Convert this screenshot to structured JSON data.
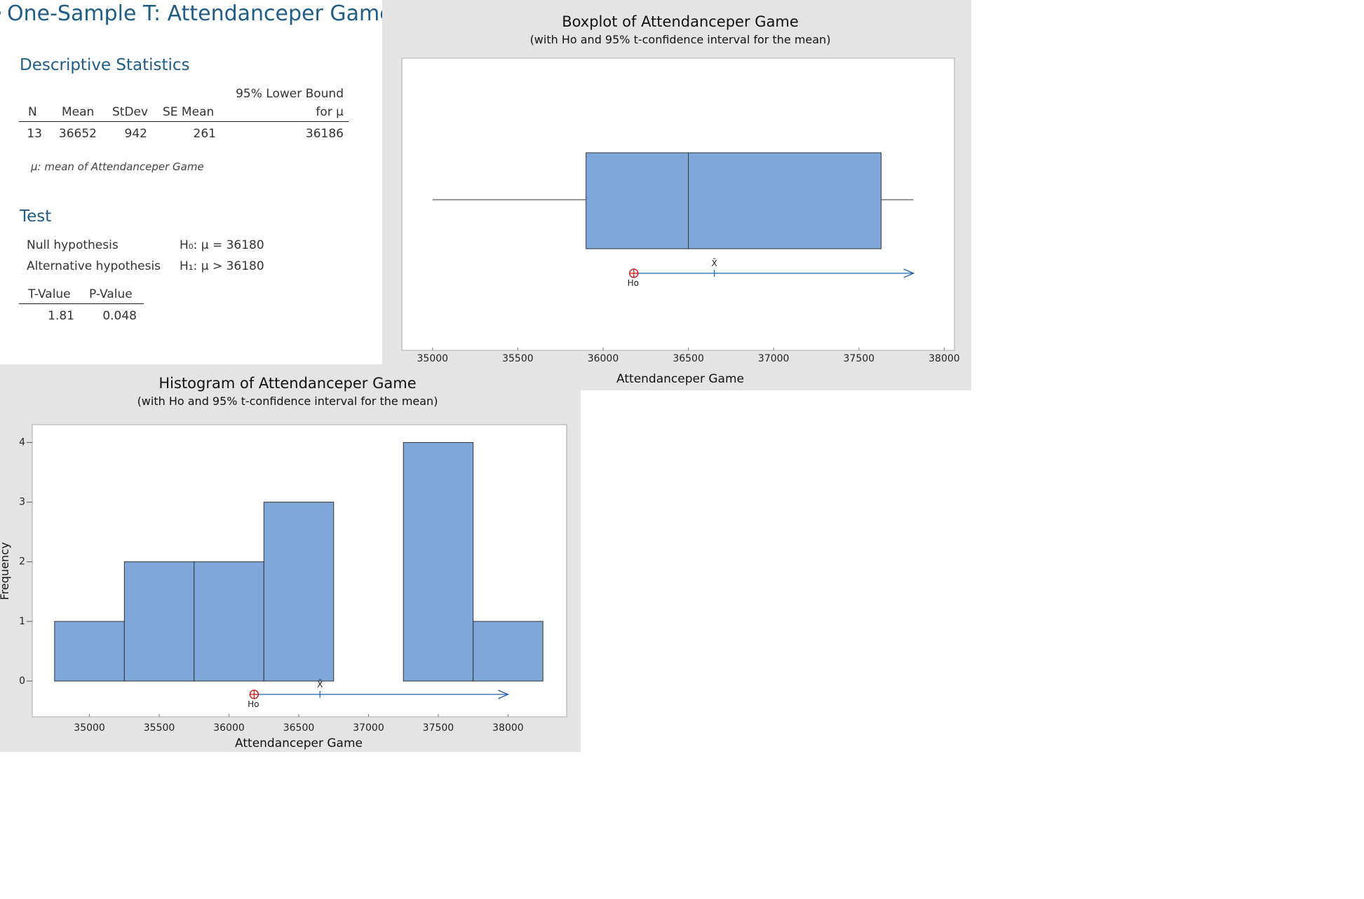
{
  "session": {
    "title": "One-Sample T: Attendanceper Game",
    "descriptive": {
      "heading": "Descriptive Statistics",
      "bound_header_line1": "95% Lower Bound",
      "bound_header_line2": "for μ",
      "columns": [
        "N",
        "Mean",
        "StDev",
        "SE Mean"
      ],
      "row": {
        "n": "13",
        "mean": "36652",
        "stdev": "942",
        "se_mean": "261",
        "lower_bound": "36186"
      },
      "footnote": "μ: mean of Attendanceper Game"
    },
    "test": {
      "heading": "Test",
      "null_label": "Null hypothesis",
      "null_value": "H₀: μ = 36180",
      "alt_label": "Alternative hypothesis",
      "alt_value": "H₁: μ > 36180",
      "t_header": "T-Value",
      "p_header": "P-Value",
      "t_value": "1.81",
      "p_value": "0.048"
    }
  },
  "charts": {
    "boxplot_title": "Boxplot of Attendanceper Game",
    "boxplot_subtitle": "(with Ho and 95% t-confidence interval for the mean)",
    "histogram_title": "Histogram of Attendanceper Game",
    "histogram_subtitle": "(with Ho and 95% t-confidence interval for the mean)",
    "xlabel": "Attendanceper Game",
    "ylabel": "Frequency",
    "mean_marker": "X̄",
    "ho_marker": "Ho"
  },
  "chart_data": [
    {
      "type": "boxplot",
      "title": "Boxplot of Attendanceper Game",
      "subtitle": "(with Ho and 95% t-confidence interval for the mean)",
      "xlabel": "Attendanceper Game",
      "xlim": [
        34820,
        38060
      ],
      "xticks": [
        35000,
        35500,
        36000,
        36500,
        37000,
        37500,
        38000
      ],
      "whisker_low": 35000,
      "q1": 35900,
      "median": 36500,
      "q3": 37630,
      "whisker_high": 37820,
      "mean": 36652,
      "ho": 36180,
      "ci_lower": 36186,
      "ci_upper_end": 37820,
      "box_color": "#7fa7da",
      "interval_color": "#1f5fb0",
      "ho_color": "#cc2222"
    },
    {
      "type": "histogram",
      "title": "Histogram of Attendanceper Game",
      "subtitle": "(with Ho and 95% t-confidence interval for the mean)",
      "xlabel": "Attendanceper Game",
      "ylabel": "Frequency",
      "xlim": [
        34590,
        38420
      ],
      "ylim": [
        -0.6,
        4.3
      ],
      "xticks": [
        35000,
        35500,
        36000,
        36500,
        37000,
        37500,
        38000
      ],
      "yticks": [
        0,
        1,
        2,
        3,
        4
      ],
      "bin_width": 500,
      "bins": [
        {
          "start": 34750,
          "end": 35250,
          "count": 1
        },
        {
          "start": 35250,
          "end": 35750,
          "count": 2
        },
        {
          "start": 35750,
          "end": 36250,
          "count": 2
        },
        {
          "start": 36250,
          "end": 36750,
          "count": 3
        },
        {
          "start": 36750,
          "end": 37250,
          "count": 0
        },
        {
          "start": 37250,
          "end": 37750,
          "count": 4
        },
        {
          "start": 37750,
          "end": 38250,
          "count": 1
        }
      ],
      "mean": 36652,
      "ho": 36180,
      "ci_lower": 36186,
      "ci_upper_end": 38000,
      "bar_color": "#7fa7da",
      "interval_color": "#1f5fb0",
      "ho_color": "#cc2222"
    }
  ]
}
